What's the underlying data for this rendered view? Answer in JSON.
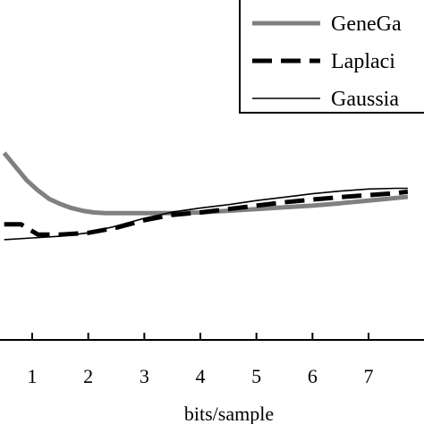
{
  "chart_data": {
    "type": "line",
    "title": "",
    "xlabel": "bits/sample",
    "ylabel": "",
    "xlim": [
      0.5,
      7.7
    ],
    "ylim": [
      0,
      1
    ],
    "grid": false,
    "legend_position": "top-right",
    "x_ticks": [
      1,
      2,
      3,
      4,
      5,
      6,
      7
    ],
    "x_tick_labels": [
      "1",
      "2",
      "3",
      "4",
      "5",
      "6",
      "7"
    ],
    "series": [
      {
        "name": "GeneGa",
        "color": "#808080",
        "style": "solid-thick",
        "x": [
          0.5,
          0.7,
          0.9,
          1.1,
          1.3,
          1.5,
          1.7,
          1.9,
          2.1,
          2.3,
          2.5,
          2.8,
          3.1,
          3.5,
          4.0,
          4.5,
          5.0,
          5.5,
          6.0,
          6.5,
          7.0,
          7.5,
          7.7
        ],
        "y": [
          0.55,
          0.51,
          0.47,
          0.44,
          0.415,
          0.4,
          0.388,
          0.38,
          0.375,
          0.373,
          0.373,
          0.373,
          0.373,
          0.373,
          0.375,
          0.38,
          0.385,
          0.39,
          0.395,
          0.402,
          0.41,
          0.418,
          0.421
        ]
      },
      {
        "name": "Laplaci",
        "color": "#000000",
        "style": "dashed",
        "x": [
          0.5,
          0.8,
          1.0,
          1.1,
          1.5,
          2.0,
          2.5,
          3.0,
          3.5,
          4.0,
          4.5,
          5.0,
          5.5,
          6.0,
          6.5,
          7.0,
          7.5,
          7.7
        ],
        "y": [
          0.34,
          0.34,
          0.32,
          0.31,
          0.31,
          0.315,
          0.33,
          0.352,
          0.368,
          0.375,
          0.385,
          0.395,
          0.405,
          0.413,
          0.42,
          0.426,
          0.432,
          0.436
        ]
      },
      {
        "name": "Gaussia",
        "color": "#000000",
        "style": "solid-thin",
        "x": [
          0.5,
          1.0,
          1.5,
          2.0,
          2.5,
          3.0,
          3.5,
          4.0,
          4.5,
          5.0,
          5.5,
          6.0,
          6.5,
          7.0,
          7.5,
          7.7
        ],
        "y": [
          0.295,
          0.3,
          0.305,
          0.315,
          0.335,
          0.358,
          0.376,
          0.388,
          0.398,
          0.41,
          0.42,
          0.43,
          0.438,
          0.444,
          0.446,
          0.446
        ]
      }
    ]
  }
}
